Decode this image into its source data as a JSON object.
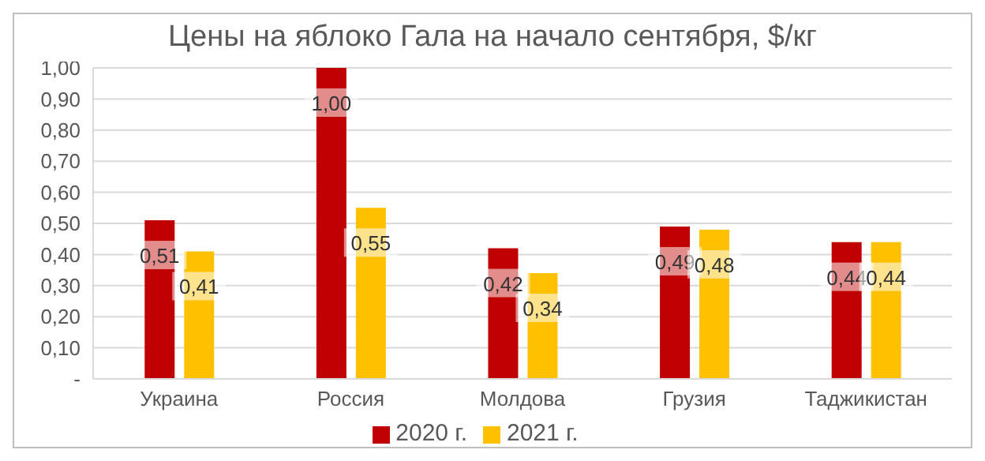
{
  "chart_data": {
    "type": "bar",
    "title": "Цены на яблоко Гала на начало сентября, $/кг",
    "categories": [
      "Украина",
      "Россия",
      "Молдова",
      "Грузия",
      "Таджикистан"
    ],
    "series": [
      {
        "name": "2020 г.",
        "color": "#c00000",
        "values": [
          0.51,
          1.0,
          0.42,
          0.49,
          0.44
        ],
        "value_labels": [
          "0,51",
          "1,00",
          "0,42",
          "0,49",
          "0,44"
        ]
      },
      {
        "name": "2021 г.",
        "color": "#ffc000",
        "values": [
          0.41,
          0.55,
          0.34,
          0.48,
          0.44
        ],
        "value_labels": [
          "0,41",
          "0,55",
          "0,34",
          "0,48",
          "0,44"
        ]
      }
    ],
    "ylim": [
      0,
      1.0
    ],
    "yticks": [
      {
        "value": 0,
        "label": "-"
      },
      {
        "value": 0.1,
        "label": "0,10"
      },
      {
        "value": 0.2,
        "label": "0,20"
      },
      {
        "value": 0.3,
        "label": "0,30"
      },
      {
        "value": 0.4,
        "label": "0,40"
      },
      {
        "value": 0.5,
        "label": "0,50"
      },
      {
        "value": 0.6,
        "label": "0,60"
      },
      {
        "value": 0.7,
        "label": "0,70"
      },
      {
        "value": 0.8,
        "label": "0,80"
      },
      {
        "value": 0.9,
        "label": "0,90"
      },
      {
        "value": 1.0,
        "label": "1,00"
      }
    ],
    "grid": "y",
    "legend": "bottom"
  }
}
